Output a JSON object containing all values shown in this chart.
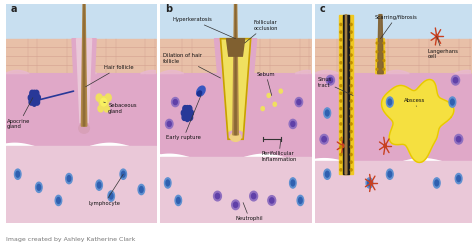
{
  "fig_width": 4.74,
  "fig_height": 2.47,
  "dpi": 100,
  "caption": "Image created by Ashley Katherine Clark",
  "caption_color": "#777777",
  "caption_fontsize": 4.5,
  "panel_labels": [
    "a",
    "b",
    "c"
  ],
  "panel_label_color": "#222222",
  "panel_label_fontsize": 7,
  "sky_color": "#c8dff0",
  "epidermis_color": "#e8c0a8",
  "epidermis_line_color": "#d4a090",
  "dermis_top_color": "#e8b8d0",
  "dermis_color": "#e0a8c8",
  "hypodermis_color": "#eac8d8",
  "hair_color": "#b08848",
  "hair_dark_color": "#806030",
  "sebaceous_color": "#f0e060",
  "apocrine_color": "#283898",
  "lymphocyte_outer": "#6090d0",
  "lymphocyte_inner": "#3060b0",
  "neutrophil_outer": "#9070c0",
  "neutrophil_inner": "#6040a8",
  "langerhans_color": "#c84020",
  "abscess_color": "#f5e040",
  "abscess_border": "#e8c800",
  "sinus_yellow": "#f0c820",
  "sinus_black": "#181818",
  "sinus_dot": "#c09000",
  "panel_bg": "#ffffff",
  "border_color": "#555555"
}
